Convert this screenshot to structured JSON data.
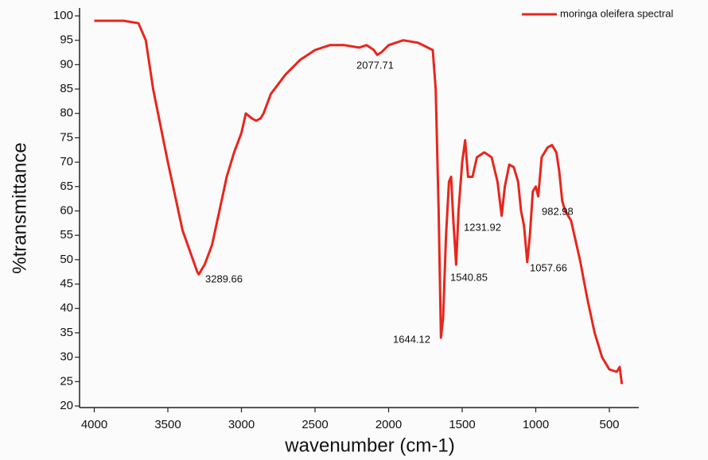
{
  "chart_data": {
    "type": "line",
    "x_label": "wavenumber (cm-1)",
    "y_label": "%transmittance",
    "xlim": [
      4100,
      300
    ],
    "ylim": [
      20,
      100
    ],
    "xticks": [
      4000,
      3500,
      3000,
      2500,
      2000,
      1500,
      1000,
      500
    ],
    "yticks": [
      20,
      25,
      30,
      35,
      40,
      45,
      50,
      55,
      60,
      65,
      70,
      75,
      80,
      85,
      90,
      95,
      100
    ],
    "legend": "top-right",
    "annotations": [
      "3289.66",
      "2077.71",
      "1644.12",
      "1540.85",
      "1231.92",
      "1057.66",
      "982.98"
    ],
    "series": [
      {
        "name": "moringa oleifera spectral",
        "color": "#e8261c",
        "x": [
          4000,
          3800,
          3700,
          3650,
          3600,
          3500,
          3400,
          3300,
          3289.66,
          3250,
          3200,
          3150,
          3100,
          3050,
          3000,
          2970,
          2930,
          2900,
          2870,
          2850,
          2800,
          2700,
          2600,
          2500,
          2400,
          2300,
          2200,
          2150,
          2100,
          2077.71,
          2050,
          2000,
          1900,
          1800,
          1700,
          1680,
          1660,
          1644.12,
          1630,
          1610,
          1590,
          1575,
          1560,
          1540.85,
          1525,
          1500,
          1480,
          1460,
          1430,
          1400,
          1350,
          1300,
          1260,
          1231.92,
          1210,
          1180,
          1150,
          1120,
          1100,
          1080,
          1057.66,
          1040,
          1020,
          1000,
          982.98,
          960,
          920,
          890,
          860,
          840,
          820,
          800,
          760,
          700,
          650,
          600,
          550,
          500,
          450,
          430,
          415
        ],
        "values": [
          99,
          99,
          98.5,
          95,
          85,
          70,
          56,
          47.5,
          47,
          49,
          53,
          60,
          67,
          72,
          76,
          80,
          79,
          78.5,
          79,
          80,
          84,
          88,
          91,
          93,
          94,
          94,
          93.5,
          94,
          93,
          92,
          92.5,
          94,
          95,
          94.5,
          93,
          85,
          60,
          34,
          38,
          55,
          66,
          67,
          58,
          49,
          60,
          70,
          74.5,
          67,
          67,
          71,
          72,
          71,
          66,
          59,
          65,
          69.5,
          69,
          66,
          60,
          57,
          49.5,
          55,
          64,
          65,
          63,
          71,
          73,
          73.5,
          72,
          68,
          62,
          60,
          58,
          50,
          42,
          35,
          30,
          27.5,
          27,
          28,
          24.5
        ]
      }
    ]
  }
}
